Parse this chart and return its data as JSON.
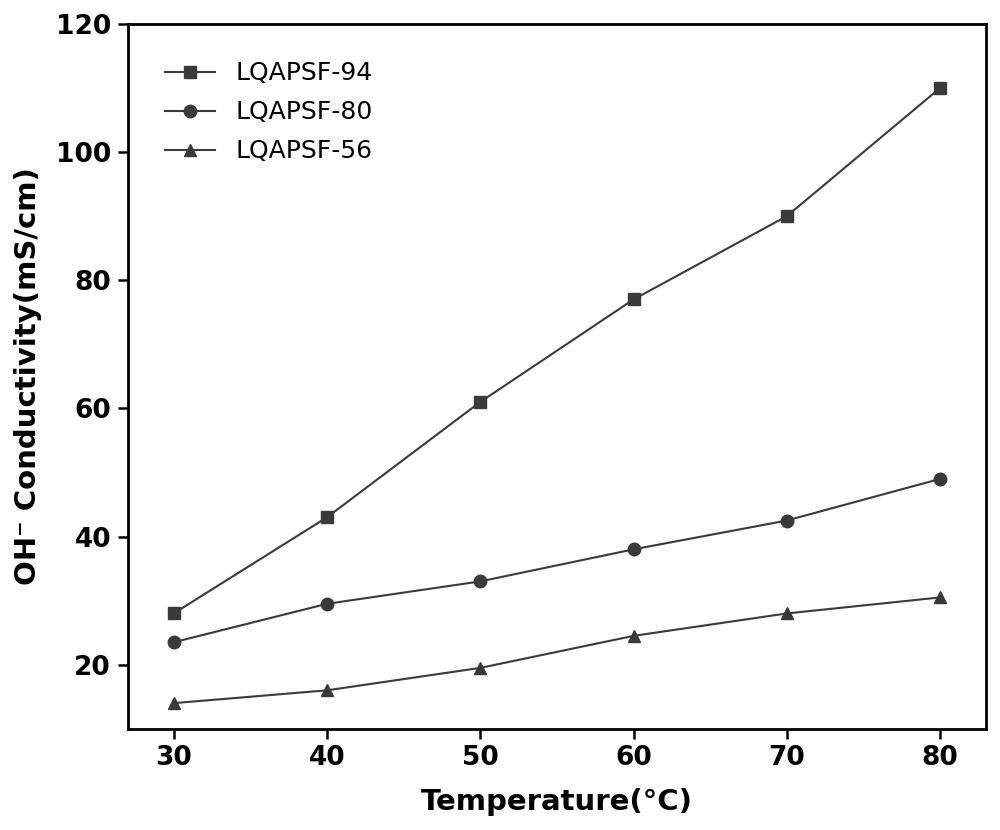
{
  "temperature": [
    30,
    40,
    50,
    60,
    70,
    80
  ],
  "series": [
    {
      "label": "LQAPSF-94",
      "values": [
        28,
        43,
        61,
        77,
        90,
        110
      ],
      "marker": "s",
      "color": "#3a3a3a",
      "linewidth": 1.5,
      "markersize": 9
    },
    {
      "label": "LQAPSF-80",
      "values": [
        23.5,
        29.5,
        33,
        38,
        42.5,
        49
      ],
      "marker": "o",
      "color": "#3a3a3a",
      "linewidth": 1.5,
      "markersize": 9
    },
    {
      "label": "LQAPSF-56",
      "values": [
        14,
        16,
        19.5,
        24.5,
        28,
        30.5
      ],
      "marker": "^",
      "color": "#3a3a3a",
      "linewidth": 1.5,
      "markersize": 9
    }
  ],
  "xlabel": "Temperature(°C)",
  "ylabel": "OH⁻ Conductivity(mS/cm)",
  "ylim": [
    10,
    120
  ],
  "yticks": [
    20,
    40,
    60,
    80,
    100,
    120
  ],
  "xlim": [
    27,
    83
  ],
  "xticks": [
    30,
    40,
    50,
    60,
    70,
    80
  ],
  "xlabel_fontsize": 21,
  "ylabel_fontsize": 21,
  "tick_fontsize": 19,
  "legend_fontsize": 18,
  "legend_loc": "upper left",
  "background_color": "#ffffff",
  "spine_color": "#000000",
  "figsize": [
    10,
    8.3
  ],
  "dpi": 100
}
